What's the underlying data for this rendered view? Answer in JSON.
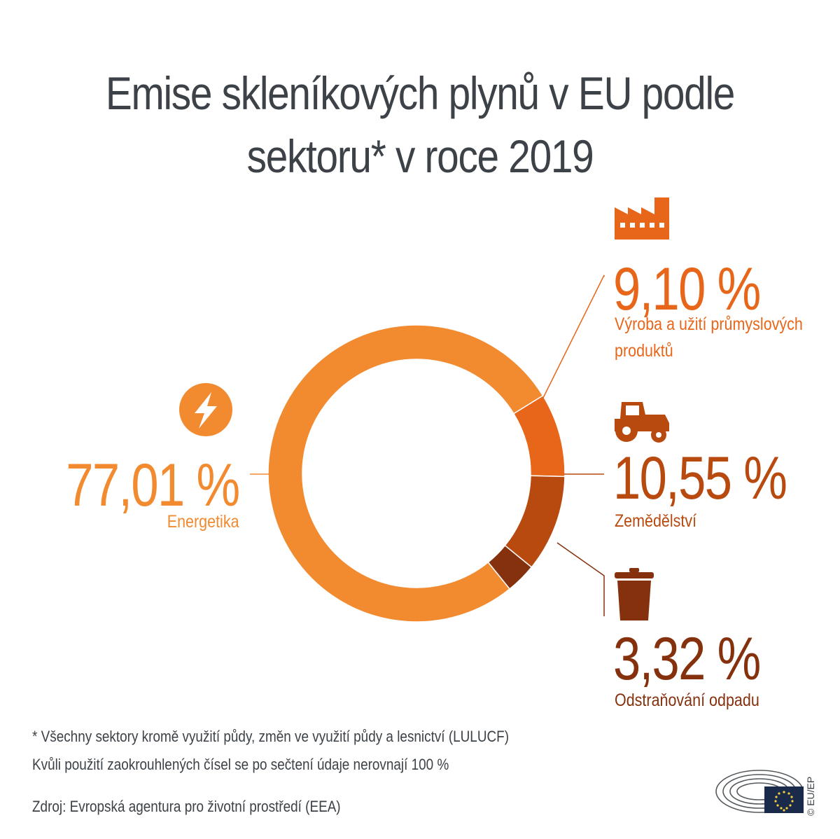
{
  "title": {
    "line1": "Emise skleníkových plynů v EU podle",
    "line2": "sektoru* v roce 2019"
  },
  "colors": {
    "title": "#3c4247",
    "energy": "#f28a30",
    "industry": "#e8661a",
    "agriculture": "#b84a0f",
    "waste": "#85310e"
  },
  "chart_data": {
    "type": "pie",
    "variant": "donut",
    "categories": [
      "Energetika",
      "Výroba a užití průmyslových produktů",
      "Zemědělství",
      "Odstraňování odpadu"
    ],
    "values": [
      77.01,
      9.1,
      10.55,
      3.32
    ],
    "unit": "%",
    "title": "Emise skleníkových plynů v EU podle sektoru* v roce 2019"
  },
  "labels": {
    "energy": {
      "value": "77,01 %",
      "name": "Energetika",
      "icon": "lightning-icon"
    },
    "industry": {
      "value": "9,10 %",
      "name_line1": "Výroba a užití průmyslových",
      "name_line2": "produktů",
      "icon": "factory-icon"
    },
    "agriculture": {
      "value": "10,55 %",
      "name": "Zemědělství",
      "icon": "tractor-icon"
    },
    "waste": {
      "value": "3,32 %",
      "name": "Odstraňování odpadu",
      "icon": "trash-bin-icon"
    }
  },
  "footnotes": {
    "note1": "* Všechny sektory kromě využití půdy, změn ve využití půdy a lesnictví (LULUCF)",
    "note2": "Kvůli použití zaokrouhlených čísel se po sečtení údaje nerovnají 100 %",
    "source": "Zdroj: Evropská agentura pro životní prostředí (EEA)"
  },
  "credit": "© EU/EP",
  "logo": "european-parliament-logo"
}
